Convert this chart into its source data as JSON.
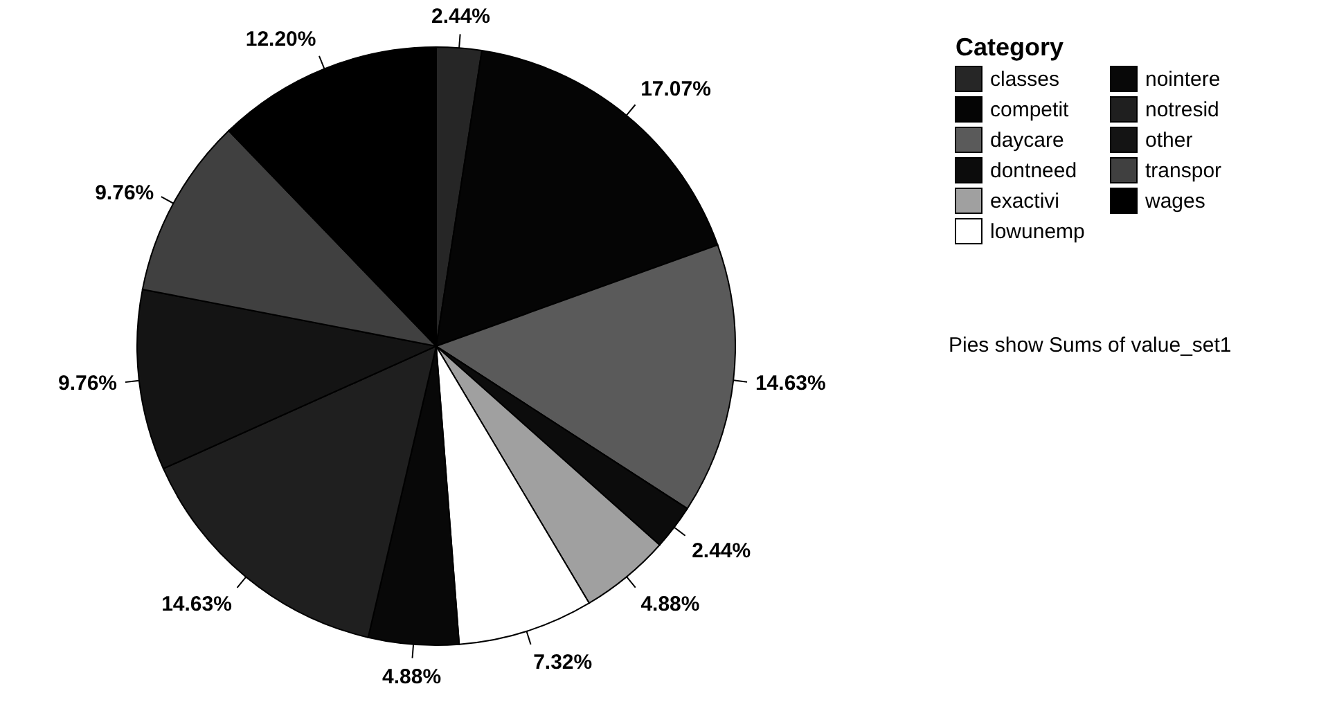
{
  "chart_data": {
    "type": "pie",
    "legend_title": "Category",
    "legend": "top right",
    "categories": [
      "classes",
      "competit",
      "daycare",
      "dontneed",
      "exactivi",
      "lowunemp",
      "nointere",
      "notresid",
      "other",
      "transpor",
      "wages"
    ],
    "values": [
      2.44,
      17.07,
      14.63,
      2.44,
      4.88,
      7.32,
      4.88,
      14.63,
      9.76,
      9.76,
      12.2
    ],
    "value_labels": [
      "2.44%",
      "17.07%",
      "14.63%",
      "2.44%",
      "4.88%",
      "7.32%",
      "4.88%",
      "14.63%",
      "9.76%",
      "9.76%",
      "12.20%"
    ],
    "colors": [
      "#262626",
      "#050505",
      "#5a5a5a",
      "#0c0c0c",
      "#a0a0a0",
      "#ffffff",
      "#080808",
      "#1f1f1f",
      "#141414",
      "#404040",
      "#000000"
    ],
    "annotations": [
      "Pies show Sums of value_set1"
    ]
  }
}
